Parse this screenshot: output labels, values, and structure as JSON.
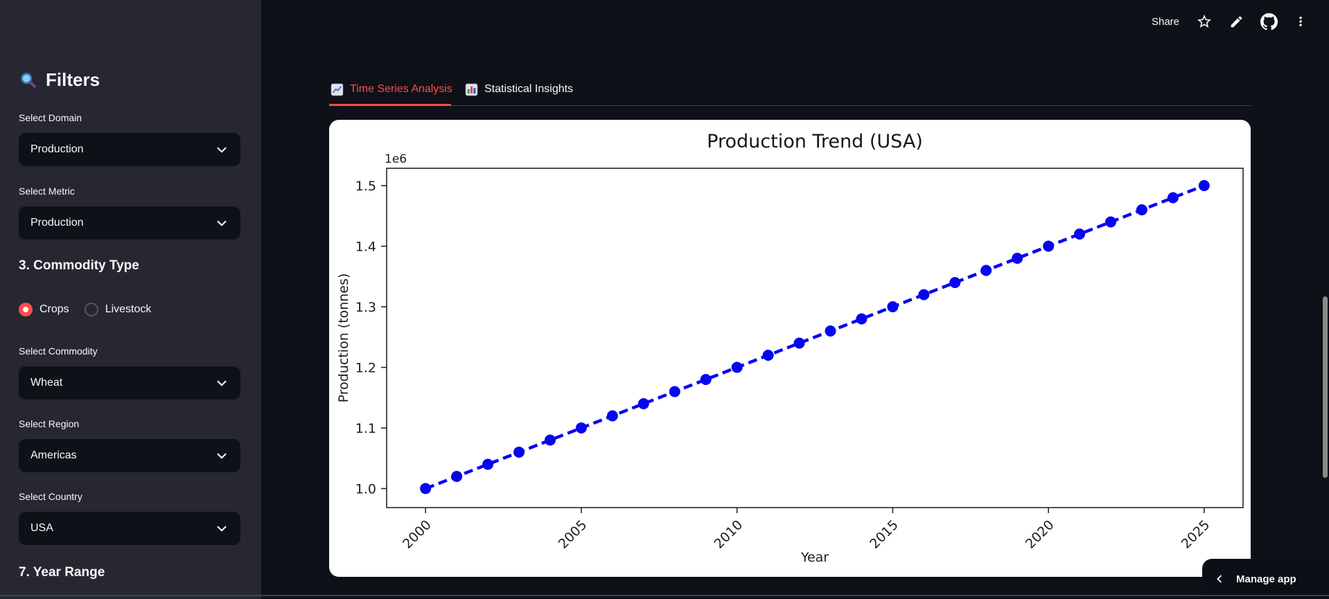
{
  "header": {
    "share": "Share",
    "icons": [
      "star-icon",
      "pencil-icon",
      "github-icon",
      "overflow-menu-icon"
    ]
  },
  "sidebar": {
    "title": "Filters",
    "title_icon": "magnifier",
    "domain_label": "Select Domain",
    "domain_value": "Production",
    "metric_label": "Select Metric",
    "metric_value": "Production",
    "commodity_type_heading": "3. Commodity Type",
    "crops_label": "Crops",
    "livestock_label": "Livestock",
    "commodity_label": "Select Commodity",
    "commodity_value": "Wheat",
    "region_label": "Select Region",
    "region_value": "Americas",
    "country_label": "Select Country",
    "country_value": "USA",
    "year_range_heading": "7. Year Range"
  },
  "tabs": {
    "tab1": {
      "label": "Time Series Analysis",
      "icon": "line-chart",
      "active": true
    },
    "tab2": {
      "label": "Statistical Insights",
      "icon": "bar-chart",
      "active": false
    }
  },
  "footer": {
    "manage_app": "Manage app"
  },
  "accent_color": "#ff4b4b",
  "chart_data": {
    "type": "line",
    "title": "Production Trend (USA)",
    "xlabel": "Year",
    "ylabel": "Production (tonnes)",
    "y_offset_label": "1e6",
    "x": [
      2000,
      2001,
      2002,
      2003,
      2004,
      2005,
      2006,
      2007,
      2008,
      2009,
      2010,
      2011,
      2012,
      2013,
      2014,
      2015,
      2016,
      2017,
      2018,
      2019,
      2020,
      2021,
      2022,
      2023,
      2024,
      2025
    ],
    "y": [
      1000000,
      1020000,
      1040000,
      1060000,
      1080000,
      1100000,
      1120000,
      1140000,
      1160000,
      1180000,
      1200000,
      1220000,
      1240000,
      1260000,
      1280000,
      1300000,
      1320000,
      1340000,
      1360000,
      1380000,
      1400000,
      1420000,
      1440000,
      1460000,
      1480000,
      1500000
    ],
    "x_ticks": [
      2000,
      2005,
      2010,
      2015,
      2020,
      2025
    ],
    "y_ticks": [
      1000000,
      1100000,
      1200000,
      1300000,
      1400000,
      1500000
    ],
    "xlim": [
      1998.75,
      2026.25
    ],
    "ylim": [
      968600,
      1528600
    ],
    "line_color": "#0505ef",
    "line_style": "dashed",
    "marker": "circle",
    "grid": false,
    "legend": null
  }
}
